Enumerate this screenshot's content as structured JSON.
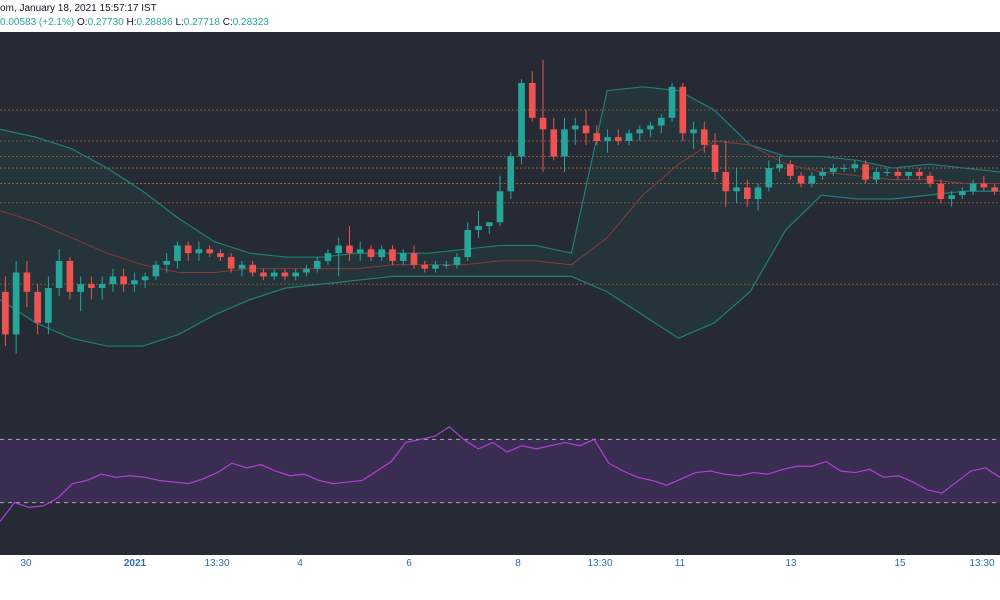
{
  "header": {
    "line1": "om, January 18, 2021 15:57:17 IST",
    "change": "0.00583 (+2.1%)",
    "open_label": "O:",
    "open": "0.27730",
    "high_label": "H:",
    "high": "0.28836",
    "low_label": "L:",
    "low": "0.27718",
    "close_label": "C:",
    "close": "0.28323"
  },
  "x_axis": {
    "ticks": [
      {
        "label": "30",
        "bold": false
      },
      {
        "label": "2021",
        "bold": true
      },
      {
        "label": "13:30",
        "bold": false
      },
      {
        "label": "4",
        "bold": false
      },
      {
        "label": "6",
        "bold": false
      },
      {
        "label": "8",
        "bold": false
      },
      {
        "label": "13:30",
        "bold": false
      },
      {
        "label": "11",
        "bold": false
      },
      {
        "label": "13",
        "bold": false
      },
      {
        "label": "15",
        "bold": false
      },
      {
        "label": "13:30",
        "bold": false
      }
    ]
  },
  "colors": {
    "up": "#26a69a",
    "down": "#ef5350",
    "bollinger": "#1e7f76",
    "basis": "#8b3a3a",
    "rsi": "#b23fd6",
    "levels": "#c8782e",
    "background": "#262a34"
  },
  "chart_data": {
    "type": "candlestick",
    "indicators": [
      "bollinger_bands",
      "rsi"
    ],
    "price_levels": [
      0.305,
      0.297,
      0.293,
      0.29,
      0.286,
      0.281,
      0.26
    ],
    "ohlc": [
      [
        0.258,
        0.262,
        0.244,
        0.247
      ],
      [
        0.247,
        0.266,
        0.242,
        0.263
      ],
      [
        0.263,
        0.266,
        0.254,
        0.258
      ],
      [
        0.258,
        0.26,
        0.247,
        0.25
      ],
      [
        0.25,
        0.262,
        0.247,
        0.259
      ],
      [
        0.259,
        0.269,
        0.257,
        0.266
      ],
      [
        0.266,
        0.267,
        0.256,
        0.258
      ],
      [
        0.258,
        0.262,
        0.253,
        0.26
      ],
      [
        0.26,
        0.262,
        0.256,
        0.259
      ],
      [
        0.259,
        0.262,
        0.256,
        0.26
      ],
      [
        0.26,
        0.264,
        0.258,
        0.262
      ],
      [
        0.262,
        0.264,
        0.258,
        0.26
      ],
      [
        0.26,
        0.263,
        0.258,
        0.261
      ],
      [
        0.261,
        0.263,
        0.259,
        0.262
      ],
      [
        0.262,
        0.266,
        0.261,
        0.265
      ],
      [
        0.265,
        0.268,
        0.263,
        0.266
      ],
      [
        0.266,
        0.271,
        0.264,
        0.27
      ],
      [
        0.27,
        0.271,
        0.266,
        0.268
      ],
      [
        0.268,
        0.271,
        0.266,
        0.269
      ],
      [
        0.269,
        0.27,
        0.267,
        0.268
      ],
      [
        0.268,
        0.269,
        0.266,
        0.267
      ],
      [
        0.267,
        0.268,
        0.263,
        0.264
      ],
      [
        0.264,
        0.266,
        0.262,
        0.265
      ],
      [
        0.265,
        0.266,
        0.262,
        0.263
      ],
      [
        0.263,
        0.264,
        0.261,
        0.262
      ],
      [
        0.262,
        0.264,
        0.261,
        0.263
      ],
      [
        0.263,
        0.264,
        0.261,
        0.262
      ],
      [
        0.262,
        0.264,
        0.261,
        0.263
      ],
      [
        0.263,
        0.265,
        0.262,
        0.264
      ],
      [
        0.264,
        0.267,
        0.263,
        0.266
      ],
      [
        0.266,
        0.269,
        0.265,
        0.268
      ],
      [
        0.268,
        0.272,
        0.262,
        0.27
      ],
      [
        0.27,
        0.275,
        0.266,
        0.268
      ],
      [
        0.268,
        0.271,
        0.266,
        0.269
      ],
      [
        0.269,
        0.27,
        0.266,
        0.267
      ],
      [
        0.267,
        0.27,
        0.266,
        0.269
      ],
      [
        0.269,
        0.27,
        0.265,
        0.266
      ],
      [
        0.266,
        0.269,
        0.265,
        0.268
      ],
      [
        0.268,
        0.27,
        0.264,
        0.265
      ],
      [
        0.265,
        0.266,
        0.263,
        0.264
      ],
      [
        0.264,
        0.266,
        0.263,
        0.265
      ],
      [
        0.265,
        0.266,
        0.264,
        0.265
      ],
      [
        0.265,
        0.268,
        0.264,
        0.267
      ],
      [
        0.267,
        0.276,
        0.266,
        0.274
      ],
      [
        0.274,
        0.279,
        0.272,
        0.275
      ],
      [
        0.275,
        0.276,
        0.273,
        0.276
      ],
      [
        0.276,
        0.288,
        0.275,
        0.284
      ],
      [
        0.284,
        0.294,
        0.282,
        0.293
      ],
      [
        0.293,
        0.313,
        0.291,
        0.312
      ],
      [
        0.312,
        0.315,
        0.302,
        0.303
      ],
      [
        0.303,
        0.318,
        0.289,
        0.3
      ],
      [
        0.3,
        0.303,
        0.292,
        0.293
      ],
      [
        0.293,
        0.303,
        0.289,
        0.3
      ],
      [
        0.3,
        0.303,
        0.296,
        0.301
      ],
      [
        0.301,
        0.305,
        0.296,
        0.299
      ],
      [
        0.299,
        0.301,
        0.296,
        0.297
      ],
      [
        0.297,
        0.3,
        0.294,
        0.298
      ],
      [
        0.298,
        0.3,
        0.296,
        0.297
      ],
      [
        0.297,
        0.3,
        0.296,
        0.299
      ],
      [
        0.299,
        0.301,
        0.297,
        0.3
      ],
      [
        0.3,
        0.302,
        0.298,
        0.301
      ],
      [
        0.301,
        0.304,
        0.299,
        0.303
      ],
      [
        0.303,
        0.312,
        0.302,
        0.311
      ],
      [
        0.311,
        0.312,
        0.297,
        0.299
      ],
      [
        0.299,
        0.302,
        0.295,
        0.3
      ],
      [
        0.3,
        0.302,
        0.294,
        0.296
      ],
      [
        0.296,
        0.299,
        0.287,
        0.289
      ],
      [
        0.289,
        0.297,
        0.28,
        0.284
      ],
      [
        0.284,
        0.29,
        0.281,
        0.285
      ],
      [
        0.285,
        0.287,
        0.28,
        0.282
      ],
      [
        0.282,
        0.286,
        0.279,
        0.285
      ],
      [
        0.285,
        0.292,
        0.284,
        0.29
      ],
      [
        0.29,
        0.293,
        0.289,
        0.291
      ],
      [
        0.291,
        0.292,
        0.287,
        0.288
      ],
      [
        0.288,
        0.289,
        0.285,
        0.286
      ],
      [
        0.286,
        0.289,
        0.285,
        0.288
      ],
      [
        0.288,
        0.29,
        0.287,
        0.289
      ],
      [
        0.289,
        0.291,
        0.288,
        0.29
      ],
      [
        0.29,
        0.291,
        0.289,
        0.29
      ],
      [
        0.29,
        0.292,
        0.289,
        0.291
      ],
      [
        0.291,
        0.292,
        0.286,
        0.287
      ],
      [
        0.287,
        0.29,
        0.286,
        0.289
      ],
      [
        0.289,
        0.29,
        0.288,
        0.289
      ],
      [
        0.289,
        0.29,
        0.287,
        0.288
      ],
      [
        0.288,
        0.289,
        0.287,
        0.289
      ],
      [
        0.289,
        0.29,
        0.287,
        0.288
      ],
      [
        0.288,
        0.289,
        0.285,
        0.286
      ],
      [
        0.286,
        0.287,
        0.281,
        0.282
      ],
      [
        0.282,
        0.284,
        0.28,
        0.283
      ],
      [
        0.283,
        0.285,
        0.282,
        0.284
      ],
      [
        0.284,
        0.287,
        0.283,
        0.286
      ],
      [
        0.286,
        0.288,
        0.284,
        0.285
      ],
      [
        0.285,
        0.286,
        0.283,
        0.284
      ]
    ],
    "bollinger": {
      "upper": [
        0.3,
        0.298,
        0.295,
        0.29,
        0.284,
        0.277,
        0.271,
        0.268,
        0.267,
        0.267,
        0.268,
        0.268,
        0.268,
        0.269,
        0.27,
        0.27,
        0.268,
        0.31,
        0.311,
        0.31,
        0.305,
        0.296,
        0.293,
        0.293,
        0.292,
        0.29,
        0.291,
        0.29,
        0.289
      ],
      "lower": [
        0.256,
        0.25,
        0.246,
        0.244,
        0.244,
        0.247,
        0.252,
        0.256,
        0.259,
        0.26,
        0.261,
        0.262,
        0.262,
        0.262,
        0.262,
        0.262,
        0.262,
        0.258,
        0.252,
        0.246,
        0.25,
        0.258,
        0.274,
        0.283,
        0.282,
        0.282,
        0.283,
        0.284,
        0.284
      ],
      "basis": [
        0.279,
        0.276,
        0.272,
        0.268,
        0.265,
        0.263,
        0.263,
        0.264,
        0.264,
        0.264,
        0.264,
        0.265,
        0.265,
        0.265,
        0.266,
        0.266,
        0.265,
        0.272,
        0.283,
        0.291,
        0.297,
        0.296,
        0.291,
        0.289,
        0.288,
        0.287,
        0.287,
        0.286,
        0.286
      ]
    },
    "rsi": {
      "upper_level": 70,
      "lower_level": 30,
      "values": [
        18,
        30,
        27,
        28,
        33,
        42,
        44,
        48,
        46,
        47,
        46,
        44,
        43,
        42,
        45,
        49,
        55,
        52,
        54,
        50,
        47,
        48,
        44,
        42,
        43,
        44,
        50,
        56,
        68,
        70,
        72,
        78,
        70,
        64,
        68,
        62,
        66,
        64,
        66,
        68,
        66,
        70,
        55,
        50,
        46,
        44,
        41,
        45,
        49,
        50,
        48,
        47,
        49,
        48,
        51,
        53,
        53,
        56,
        50,
        49,
        51,
        46,
        47,
        43,
        38,
        36,
        43,
        50,
        52,
        46
      ]
    }
  }
}
